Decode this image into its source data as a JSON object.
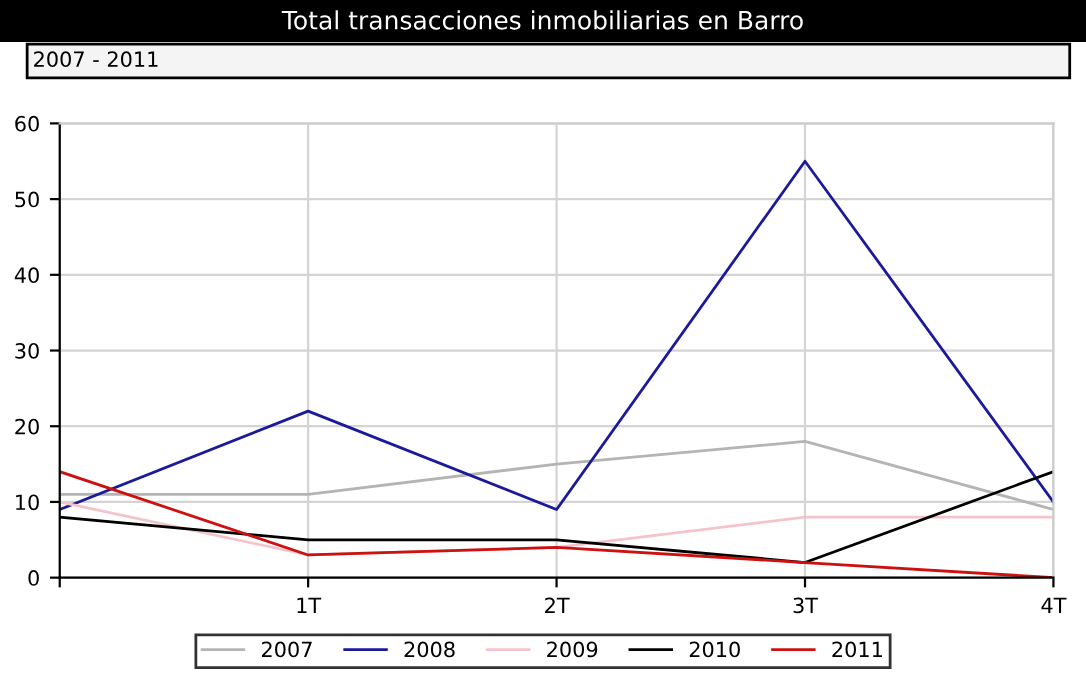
{
  "chart_data": {
    "type": "line",
    "title": "Total transacciones inmobiliarias en Barro",
    "subtitle": "2007 - 2011",
    "categories": [
      null,
      "1T",
      "2T",
      "3T",
      "4T"
    ],
    "series": [
      {
        "name": "2007",
        "color": "#b4b4b4",
        "values": [
          11,
          11,
          15,
          18,
          9
        ]
      },
      {
        "name": "2008",
        "color": "#1a1a9a",
        "values": [
          9,
          22,
          9,
          55,
          10
        ]
      },
      {
        "name": "2009",
        "color": "#f4c4cc",
        "values": [
          10,
          3,
          4,
          8,
          8
        ]
      },
      {
        "name": "2010",
        "color": "#000000",
        "values": [
          8,
          5,
          5,
          2,
          14
        ]
      },
      {
        "name": "2011",
        "color": "#cc1111",
        "values": [
          14,
          3,
          4,
          2,
          0
        ]
      }
    ],
    "ylim": [
      0,
      60
    ],
    "yticks": [
      0,
      10,
      20,
      30,
      40,
      50,
      60
    ],
    "grid": true,
    "legend": "bottom"
  }
}
